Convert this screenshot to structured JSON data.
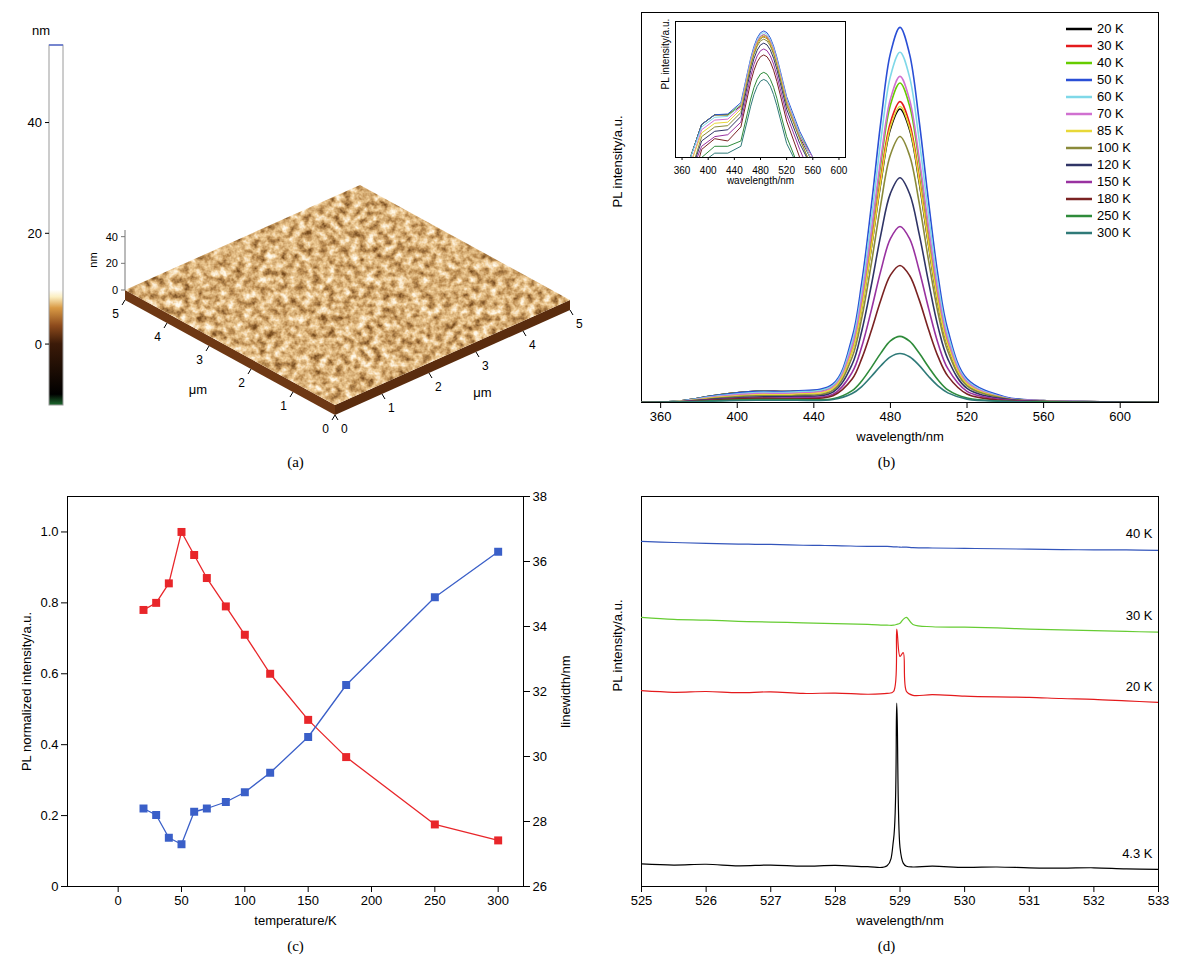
{
  "chart_data": [
    {
      "panel": "(a)",
      "type": "surface",
      "x_label": "μm",
      "y_label": "μm",
      "xlim": [
        0,
        5
      ],
      "ylim": [
        0,
        5
      ],
      "xticks": [
        0,
        1,
        2,
        3,
        4,
        5
      ],
      "yticks": [
        0,
        1,
        2,
        3,
        4,
        5
      ],
      "z_label": "nm",
      "zlim": [
        0,
        45
      ],
      "zticks": [
        0,
        20,
        40
      ],
      "colorbar": {
        "label": "nm",
        "range": [
          -11,
          54
        ],
        "ticks": [
          0,
          20,
          40
        ]
      }
    },
    {
      "panel": "(b)",
      "type": "line",
      "xlabel": "wavelength/nm",
      "ylabel": "PL intensity/a.u.",
      "x": [
        350,
        370,
        390,
        410,
        430,
        450,
        460,
        465,
        470,
        475,
        480,
        485,
        490,
        495,
        500,
        505,
        510,
        520,
        540,
        560,
        590,
        620
      ],
      "xlim": [
        350,
        620
      ],
      "xticks": [
        360,
        400,
        440,
        480,
        520,
        560,
        600
      ],
      "ylim": [
        0,
        1.05
      ],
      "tick_labels": "x",
      "legend": "top-right",
      "series": [
        {
          "name": "20 K",
          "color": "#000000",
          "values": [
            0,
            0.004,
            0.02,
            0.03,
            0.03,
            0.043,
            0.14,
            0.255,
            0.415,
            0.592,
            0.736,
            0.79,
            0.734,
            0.593,
            0.42,
            0.263,
            0.153,
            0.051,
            0.012,
            0.004,
            0.002,
            0
          ]
        },
        {
          "name": "30 K",
          "color": "#e41a1c",
          "values": [
            0,
            0.004,
            0.02,
            0.03,
            0.03,
            0.044,
            0.144,
            0.261,
            0.425,
            0.607,
            0.754,
            0.81,
            0.752,
            0.608,
            0.431,
            0.27,
            0.157,
            0.052,
            0.013,
            0.004,
            0.002,
            0
          ]
        },
        {
          "name": "40 K",
          "color": "#66cc00",
          "values": [
            0,
            0.004,
            0.02,
            0.03,
            0.03,
            0.046,
            0.151,
            0.276,
            0.451,
            0.644,
            0.801,
            0.86,
            0.799,
            0.646,
            0.458,
            0.287,
            0.167,
            0.055,
            0.013,
            0.005,
            0.002,
            0
          ]
        },
        {
          "name": "50 K",
          "color": "#2a4fd6",
          "values": [
            0,
            0.004,
            0.02,
            0.03,
            0.031,
            0.05,
            0.175,
            0.322,
            0.528,
            0.756,
            0.94,
            1.01,
            0.938,
            0.758,
            0.537,
            0.336,
            0.195,
            0.064,
            0.015,
            0.005,
            0.002,
            0
          ]
        },
        {
          "name": "60 K",
          "color": "#7fd8e8",
          "values": [
            0,
            0.004,
            0.018,
            0.027,
            0.028,
            0.046,
            0.163,
            0.299,
            0.492,
            0.706,
            0.878,
            0.943,
            0.876,
            0.707,
            0.501,
            0.314,
            0.182,
            0.059,
            0.013,
            0.004,
            0.002,
            0
          ]
        },
        {
          "name": "70 K",
          "color": "#d070d0",
          "values": [
            0,
            0.003,
            0.016,
            0.024,
            0.025,
            0.042,
            0.151,
            0.279,
            0.458,
            0.657,
            0.817,
            0.878,
            0.815,
            0.659,
            0.467,
            0.292,
            0.169,
            0.055,
            0.012,
            0.005,
            0.002,
            0
          ]
        },
        {
          "name": "85 K",
          "color": "#e8d838",
          "values": [
            0,
            0.003,
            0.014,
            0.021,
            0.022,
            0.038,
            0.137,
            0.253,
            0.416,
            0.596,
            0.742,
            0.797,
            0.74,
            0.599,
            0.424,
            0.265,
            0.154,
            0.05,
            0.011,
            0.003,
            0.002,
            0
          ]
        },
        {
          "name": "100 K",
          "color": "#8a8a3a",
          "values": [
            0,
            0.002,
            0.012,
            0.018,
            0.019,
            0.033,
            0.122,
            0.227,
            0.373,
            0.535,
            0.667,
            0.716,
            0.665,
            0.538,
            0.38,
            0.238,
            0.138,
            0.045,
            0.011,
            0.003,
            0.002,
            0
          ]
        },
        {
          "name": "120 K",
          "color": "#2f3466",
          "values": [
            0,
            0.002,
            0.01,
            0.015,
            0.016,
            0.028,
            0.103,
            0.192,
            0.315,
            0.452,
            0.563,
            0.605,
            0.562,
            0.454,
            0.322,
            0.201,
            0.117,
            0.038,
            0.009,
            0.003,
            0.002,
            0
          ]
        },
        {
          "name": "150 K",
          "color": "#9932a0",
          "values": [
            0,
            0.002,
            0.008,
            0.012,
            0.013,
            0.022,
            0.081,
            0.15,
            0.248,
            0.355,
            0.441,
            0.474,
            0.441,
            0.356,
            0.252,
            0.157,
            0.091,
            0.03,
            0.007,
            0.002,
            0,
            0
          ]
        },
        {
          "name": "180 K",
          "color": "#7a2222",
          "values": [
            0,
            0.001,
            0.007,
            0.011,
            0.01,
            0.018,
            0.063,
            0.118,
            0.193,
            0.276,
            0.343,
            0.369,
            0.342,
            0.277,
            0.195,
            0.122,
            0.071,
            0.023,
            0.005,
            0.002,
            0,
            0
          ]
        },
        {
          "name": "250 K",
          "color": "#2e8b3a",
          "values": [
            0,
            0.001,
            0.005,
            0.008,
            0.008,
            0.01,
            0.032,
            0.058,
            0.094,
            0.133,
            0.166,
            0.178,
            0.165,
            0.133,
            0.095,
            0.06,
            0.034,
            0.012,
            0.003,
            0.002,
            0,
            0
          ]
        },
        {
          "name": "300 K",
          "color": "#2f7a78",
          "values": [
            0,
            0.001,
            0.004,
            0.006,
            0.006,
            0.008,
            0.024,
            0.043,
            0.07,
            0.099,
            0.123,
            0.132,
            0.123,
            0.1,
            0.07,
            0.044,
            0.026,
            0.009,
            0.003,
            0,
            0,
            0
          ]
        }
      ],
      "inset": {
        "type": "line",
        "log": "y",
        "xlabel": "wavelength/nm",
        "ylabel": "PL intensity/a.u.",
        "xlim": [
          350,
          610
        ],
        "xticks": [
          360,
          400,
          440,
          480,
          520,
          560,
          600
        ],
        "ylim": [
          0.005,
          1.5
        ],
        "tick_labels": "x"
      }
    },
    {
      "panel": "(c)",
      "type": "line",
      "marker": "square",
      "xlabel": "temperature/K",
      "ylabel": "PL normalized intensity/a.u.",
      "y2label": "linewidth/nm",
      "x": [
        20,
        30,
        40,
        50,
        60,
        70,
        85,
        100,
        120,
        150,
        180,
        250,
        300
      ],
      "xlim": [
        -40,
        320
      ],
      "xticks": [
        0,
        50,
        100,
        150,
        200,
        250,
        300
      ],
      "ylim": [
        0,
        1.1
      ],
      "yticks": [
        0,
        0.2,
        0.4,
        0.6,
        0.8,
        {
          "value": 1,
          "label": "1.0"
        }
      ],
      "y2lim": [
        26,
        38
      ],
      "y2ticks": [
        26,
        28,
        30,
        32,
        34,
        36,
        38
      ],
      "series": [
        {
          "color": "#e8262a",
          "values": [
            0.78,
            0.8,
            0.855,
            1.0,
            0.935,
            0.87,
            0.79,
            0.71,
            0.6,
            0.47,
            0.365,
            0.175,
            0.13
          ]
        },
        {
          "color": "#3a5fc8",
          "axis": "y2",
          "values": [
            28.4,
            28.2,
            27.5,
            27.3,
            28.3,
            28.4,
            28.6,
            28.9,
            29.5,
            30.6,
            32.2,
            34.9,
            36.3
          ]
        }
      ]
    },
    {
      "panel": "(d)",
      "type": "line",
      "xlabel": "wavelength/nm",
      "ylabel": "PL intensity/a.u.",
      "x": [
        525,
        525.5,
        526,
        526.5,
        527,
        527.5,
        528,
        528.5,
        528.8,
        528.9,
        528.95,
        529,
        529.05,
        529.1,
        529.2,
        529.5,
        530,
        530.5,
        531,
        531.5,
        532,
        532.5,
        533
      ],
      "xlim": [
        525,
        533
      ],
      "xticks": [
        525,
        526,
        527,
        528,
        529,
        530,
        531,
        532,
        533
      ],
      "ylim": [
        0,
        10
      ],
      "tick_labels": "x",
      "series": [
        {
          "name": "40 K",
          "color": "#3355bb",
          "values": [
            8.85,
            8.82,
            8.8,
            8.78,
            8.77,
            8.75,
            8.74,
            8.72,
            8.72,
            8.71,
            8.71,
            8.7,
            8.7,
            8.7,
            8.69,
            8.68,
            8.67,
            8.66,
            8.65,
            8.64,
            8.63,
            8.63,
            8.62
          ]
        },
        {
          "name": "30 K",
          "color": "#66cc33",
          "values": [
            6.9,
            6.85,
            6.83,
            6.8,
            6.78,
            6.76,
            6.74,
            6.72,
            6.7,
            6.7,
            6.72,
            6.75,
            6.85,
            6.9,
            6.72,
            6.66,
            6.65,
            6.63,
            6.6,
            6.58,
            6.56,
            6.54,
            6.52
          ]
        },
        {
          "name": "20 K",
          "color": "#e41a1c",
          "values": [
            5.02,
            4.98,
            5.0,
            4.97,
            4.99,
            4.95,
            4.96,
            4.93,
            4.95,
            5.0,
            6.6,
            5.9,
            6.0,
            5.0,
            4.9,
            4.92,
            4.88,
            4.86,
            4.85,
            4.82,
            4.8,
            4.76,
            4.72
          ]
        },
        {
          "name": "4.3 K",
          "color": "#000000",
          "values": [
            0.58,
            0.55,
            0.57,
            0.53,
            0.55,
            0.52,
            0.54,
            0.51,
            0.53,
            1.2,
            4.7,
            1.0,
            0.6,
            0.52,
            0.5,
            0.52,
            0.49,
            0.5,
            0.48,
            0.47,
            0.48,
            0.45,
            0.44
          ]
        }
      ]
    }
  ]
}
